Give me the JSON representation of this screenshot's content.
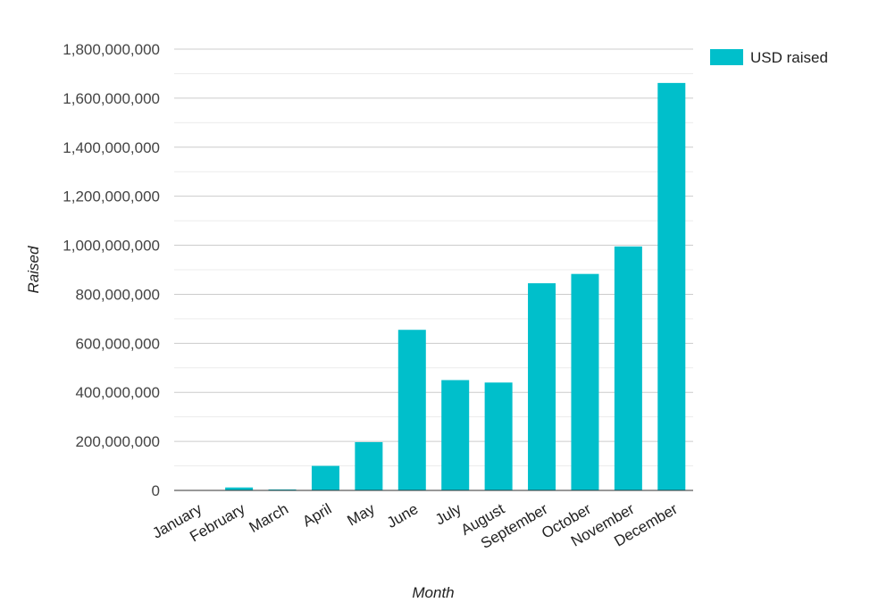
{
  "chart_data": {
    "type": "bar",
    "title": "",
    "xlabel": "Month",
    "ylabel": "Raised",
    "categories": [
      "January",
      "February",
      "March",
      "April",
      "May",
      "June",
      "July",
      "August",
      "September",
      "October",
      "November",
      "December"
    ],
    "series": [
      {
        "name": "USD raised",
        "color": "#00bfcb",
        "values": [
          1000000,
          12000000,
          4000000,
          100000000,
          197000000,
          655000000,
          450000000,
          440000000,
          845000000,
          883000000,
          995000000,
          1662000000
        ]
      }
    ],
    "ylim": [
      0,
      1800000000
    ],
    "yticks": [
      "0",
      "200,000,000",
      "400,000,000",
      "600,000,000",
      "800,000,000",
      "1,000,000,000",
      "1,200,000,000",
      "1,400,000,000",
      "1,600,000,000",
      "1,800,000,000"
    ],
    "ytick_values": [
      0,
      200000000,
      400000000,
      600000000,
      800000000,
      1000000000,
      1200000000,
      1400000000,
      1600000000,
      1800000000
    ],
    "grid": true,
    "legend_position": "top-right"
  }
}
